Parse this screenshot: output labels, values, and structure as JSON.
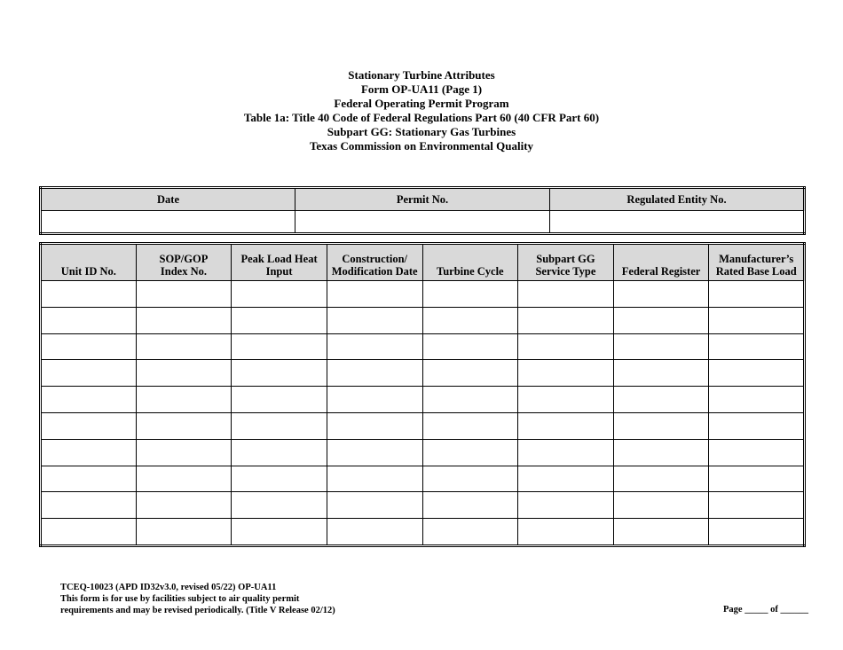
{
  "title": [
    "Stationary Turbine Attributes",
    "Form OP-UA11 (Page 1)",
    "Federal Operating Permit Program",
    "Table 1a:  Title 40 Code of Federal Regulations Part 60 (40 CFR Part 60)",
    "Subpart GG:  Stationary Gas Turbines",
    "Texas Commission on Environmental Quality"
  ],
  "table1": {
    "headers": [
      "Date",
      "Permit No.",
      "Regulated Entity No."
    ]
  },
  "table2": {
    "headers": [
      [
        "Unit ID No.",
        ""
      ],
      [
        "SOP/GOP",
        "Index No."
      ],
      [
        "Peak Load Heat",
        "Input"
      ],
      [
        "Construction/",
        "Modification Date"
      ],
      [
        "Turbine Cycle",
        ""
      ],
      [
        "Subpart GG",
        "Service Type"
      ],
      [
        "Federal Register",
        ""
      ],
      [
        "Manufacturer’s",
        "Rated Base Load"
      ]
    ],
    "row_count": 10
  },
  "footer": {
    "lines": [
      "TCEQ-10023 (APD ID32v3.0, revised 05/22) OP-UA11",
      "This form is for use by facilities subject to air quality permit",
      "requirements and may be revised periodically. (Title V Release 02/12)"
    ],
    "page": "Page _____ of ______"
  }
}
